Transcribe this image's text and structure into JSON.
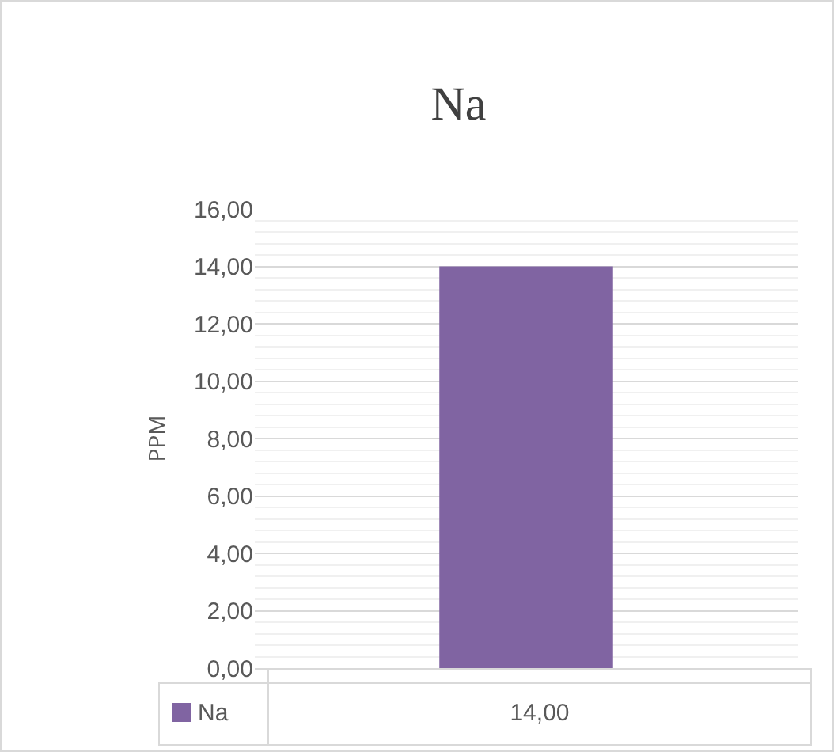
{
  "chart_data": {
    "type": "bar",
    "title": "Na",
    "ylabel": "PPM",
    "categories": [
      null
    ],
    "series": [
      {
        "name": "Na",
        "color": "#8064a2",
        "values": [
          14
        ],
        "value_labels": [
          "14,00"
        ]
      }
    ],
    "ylim": [
      0,
      16
    ],
    "yticks": [
      {
        "value": 0,
        "label": "0,00"
      },
      {
        "value": 2,
        "label": "2,00"
      },
      {
        "value": 4,
        "label": "4,00"
      },
      {
        "value": 6,
        "label": "6,00"
      },
      {
        "value": 8,
        "label": "8,00"
      },
      {
        "value": 10,
        "label": "10,00"
      },
      {
        "value": 12,
        "label": "12,00"
      },
      {
        "value": 14,
        "label": "14,00"
      },
      {
        "value": 16,
        "label": "16,00"
      }
    ],
    "grid": true,
    "legend": "bottom"
  }
}
